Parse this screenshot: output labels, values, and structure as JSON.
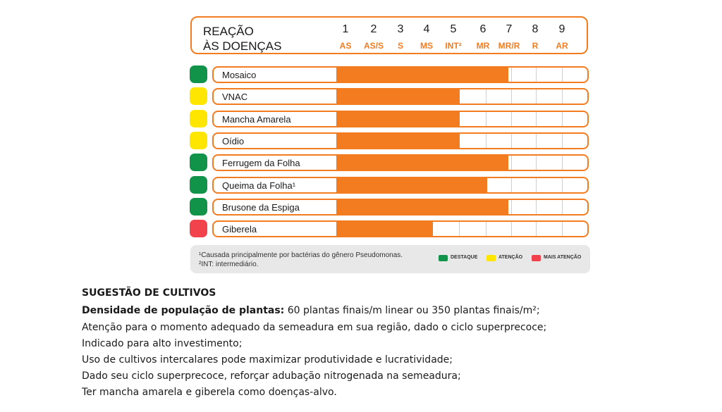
{
  "chart_data": {
    "type": "bar",
    "title_line1": "REAÇÃO",
    "title_line2": "ÀS DOENÇAS",
    "scale": [
      {
        "num": "1",
        "code": "AS"
      },
      {
        "num": "2",
        "code": "AS/S"
      },
      {
        "num": "3",
        "code": "S"
      },
      {
        "num": "4",
        "code": "MS"
      },
      {
        "num": "5",
        "code": "INT²"
      },
      {
        "num": "6",
        "code": "MR"
      },
      {
        "num": "7",
        "code": "MR/R"
      },
      {
        "num": "8",
        "code": "R"
      },
      {
        "num": "9",
        "code": "AR"
      }
    ],
    "xlim": [
      1,
      9
    ],
    "categories": [
      "Mosaico",
      "VNAC",
      "Mancha Amarela",
      "Oídio",
      "Ferrugem da Folha",
      "Queima da Folha¹",
      "Brusone da Espiga",
      "Giberela"
    ],
    "values": [
      7,
      5.2,
      5.2,
      5.2,
      7,
      6.2,
      7,
      4.2
    ],
    "status": [
      "destaque",
      "atencao",
      "atencao",
      "atencao",
      "destaque",
      "destaque",
      "destaque",
      "mais_atencao"
    ]
  },
  "colors": {
    "bar": "#f47c20",
    "destaque": "#12934a",
    "atencao": "#ffe600",
    "mais_atencao": "#f2434d"
  },
  "footnotes": {
    "note1": "¹Causada principalmente por bactérias do gênero Pseudomonas.",
    "note2": "²INT: intermediário."
  },
  "legend": {
    "destaque": "DESTAQUE",
    "atencao": "ATENÇÃO",
    "mais_atencao": "MAIS ATENÇÃO"
  },
  "suggestion": {
    "title": "SUGESTÃO DE CULTIVOS",
    "density_label": "Densidade de população de plantas:",
    "density_value": " 60 plantas finais/m linear ou 350 plantas finais/m²;",
    "lines": [
      "Atenção para o momento adequado da semeadura em sua região, dado o ciclo superprecoce;",
      "Indicado para alto investimento;",
      "Uso de cultivos intercalares pode maximizar produtividade e lucratividade;",
      "Dado seu ciclo superprecoce, reforçar adubação nitrogenada na semeadura;",
      "Ter mancha amarela e giberela como doenças-alvo."
    ]
  }
}
